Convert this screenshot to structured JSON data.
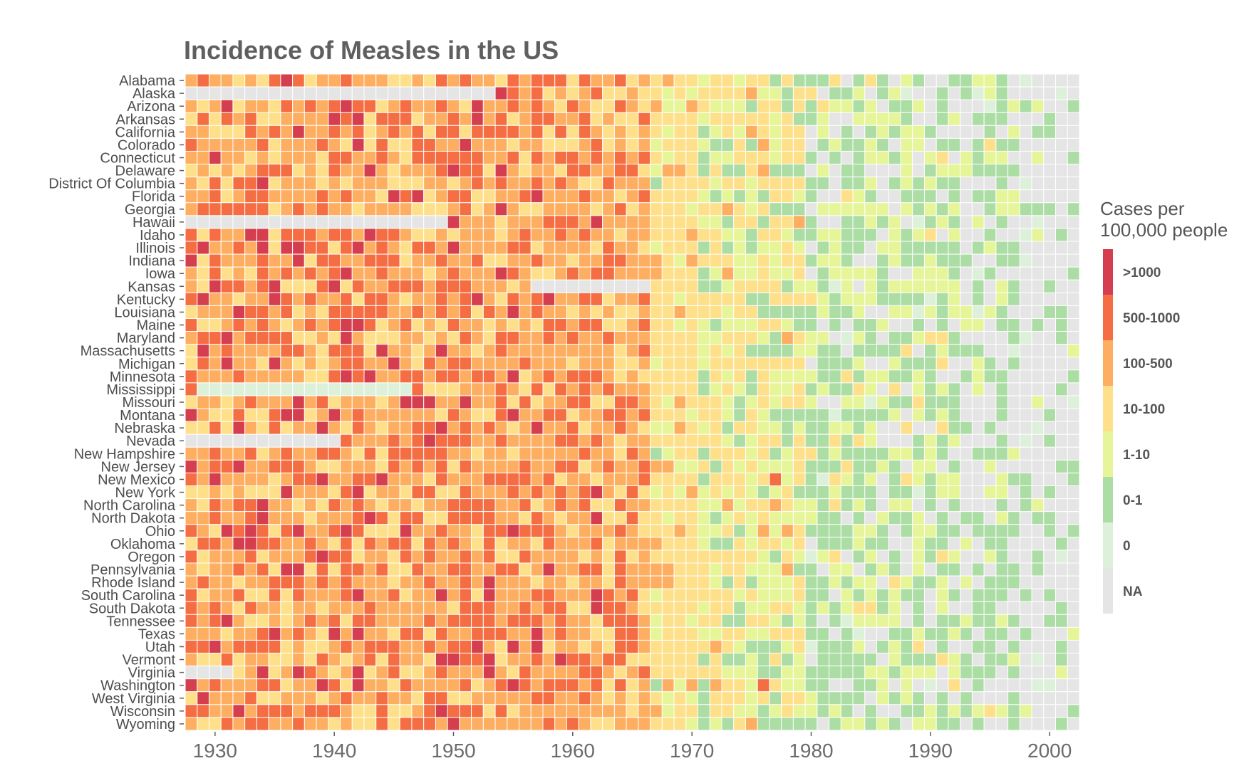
{
  "chart_data": {
    "type": "heatmap",
    "title": "Incidence of Measles in the US",
    "xlabel": "",
    "ylabel": "",
    "x_range": [
      1928,
      2003
    ],
    "x_ticks": [
      1930,
      1940,
      1950,
      1960,
      1970,
      1980,
      1990,
      2000
    ],
    "y_categories": [
      "Alabama",
      "Alaska",
      "Arizona",
      "Arkansas",
      "California",
      "Colorado",
      "Connecticut",
      "Delaware",
      "District Of Columbia",
      "Florida",
      "Georgia",
      "Hawaii",
      "Idaho",
      "Illinois",
      "Indiana",
      "Iowa",
      "Kansas",
      "Kentucky",
      "Louisiana",
      "Maine",
      "Maryland",
      "Massachusetts",
      "Michigan",
      "Minnesota",
      "Mississippi",
      "Missouri",
      "Montana",
      "Nebraska",
      "Nevada",
      "New Hampshire",
      "New Jersey",
      "New Mexico",
      "New York",
      "North Carolina",
      "North Dakota",
      "Ohio",
      "Oklahoma",
      "Oregon",
      "Pennsylvania",
      "Rhode Island",
      "South Carolina",
      "South Dakota",
      "Tennessee",
      "Texas",
      "Utah",
      "Vermont",
      "Virginia",
      "Washington",
      "West Virginia",
      "Wisconsin",
      "Wyoming"
    ],
    "legend": {
      "title_lines": [
        "Cases per",
        "100,000 people"
      ],
      "placement": "right",
      "bins": [
        {
          "label": ">1000",
          "color": "#d53e4f"
        },
        {
          "label": "500-1000",
          "color": "#f46d43"
        },
        {
          "label": "100-500",
          "color": "#fdae61"
        },
        {
          "label": "10-100",
          "color": "#fee08b"
        },
        {
          "label": "1-10",
          "color": "#e6f598"
        },
        {
          "label": "0-1",
          "color": "#abdda4"
        },
        {
          "label": "0",
          "color": "#ddf1da"
        },
        {
          "label": "NA",
          "color": "#e5e5e5"
        }
      ]
    },
    "bin_eras": [
      {
        "from": 1928,
        "to": 1945,
        "weights": [
          0.1,
          0.28,
          0.42,
          0.2,
          0,
          0,
          0,
          0
        ]
      },
      {
        "from": 1946,
        "to": 1955,
        "weights": [
          0.06,
          0.3,
          0.46,
          0.18,
          0,
          0,
          0,
          0
        ]
      },
      {
        "from": 1956,
        "to": 1962,
        "weights": [
          0.05,
          0.3,
          0.5,
          0.15,
          0,
          0,
          0,
          0
        ]
      },
      {
        "from": 1963,
        "to": 1966,
        "weights": [
          0.02,
          0.2,
          0.45,
          0.33,
          0,
          0,
          0,
          0
        ]
      },
      {
        "from": 1967,
        "to": 1970,
        "weights": [
          0,
          0,
          0.08,
          0.7,
          0.17,
          0.05,
          0,
          0
        ]
      },
      {
        "from": 1971,
        "to": 1974,
        "weights": [
          0,
          0,
          0.04,
          0.45,
          0.33,
          0.18,
          0,
          0
        ]
      },
      {
        "from": 1975,
        "to": 1979,
        "weights": [
          0,
          0.01,
          0.04,
          0.35,
          0.4,
          0.2,
          0,
          0
        ]
      },
      {
        "from": 1980,
        "to": 1984,
        "weights": [
          0,
          0,
          0,
          0.06,
          0.24,
          0.5,
          0.03,
          0.17
        ]
      },
      {
        "from": 1985,
        "to": 1992,
        "weights": [
          0,
          0,
          0,
          0.06,
          0.32,
          0.37,
          0.02,
          0.23
        ]
      },
      {
        "from": 1993,
        "to": 1997,
        "weights": [
          0,
          0,
          0,
          0.02,
          0.14,
          0.4,
          0.03,
          0.41
        ]
      },
      {
        "from": 1998,
        "to": 2002,
        "weights": [
          0,
          0,
          0,
          0,
          0.04,
          0.2,
          0.08,
          0.68
        ]
      }
    ],
    "na_spans": [
      {
        "state": "Alaska",
        "from": 1928,
        "to": 1953
      },
      {
        "state": "Hawaii",
        "from": 1928,
        "to": 1949
      },
      {
        "state": "Kansas",
        "from": 1957,
        "to": 1966
      },
      {
        "state": "Mississippi",
        "from": 1929,
        "to": 1946
      },
      {
        "state": "Nevada",
        "from": 1928,
        "to": 1940
      },
      {
        "state": "Virginia",
        "from": 1928,
        "to": 1931
      }
    ],
    "grid": false
  }
}
